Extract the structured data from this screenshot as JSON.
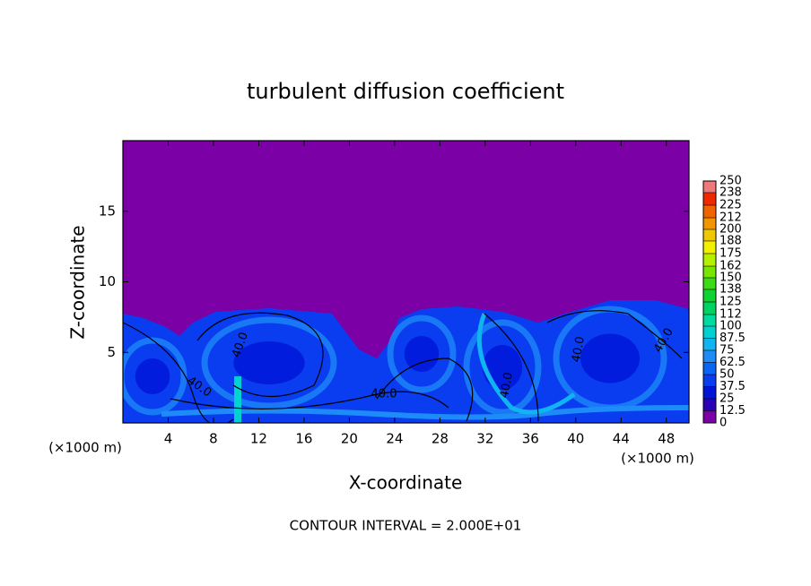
{
  "chart_data": {
    "type": "contour",
    "title": "turbulent diffusion coefficient",
    "xlabel": "X-coordinate",
    "ylabel": "Z-coordinate",
    "yunit": "(×1000 m)",
    "xunit": "(×1000 m)",
    "annotation": "CONTOUR INTERVAL = 2.000E+01",
    "xlim": [
      0,
      50
    ],
    "xticks": [
      4,
      8,
      12,
      16,
      20,
      24,
      28,
      32,
      36,
      40,
      44,
      48
    ],
    "ylim": [
      0,
      20
    ],
    "yticks": [
      5,
      10,
      15
    ],
    "clim": [
      0,
      250
    ],
    "cticks": [
      0,
      12.5,
      25,
      37.5,
      50,
      62.5,
      75,
      87.5,
      100,
      112,
      125,
      138,
      150,
      162,
      175,
      188,
      200,
      212,
      225,
      238,
      250
    ],
    "colors": [
      "#7b00a6",
      "#2a00b8",
      "#0014d8",
      "#0a3cf0",
      "#0a64f4",
      "#1e8cf8",
      "#10b4f0",
      "#00d2d2",
      "#00dca0",
      "#00d264",
      "#10d232",
      "#3cdc14",
      "#78e600",
      "#b4f000",
      "#f0f000",
      "#f0c800",
      "#f09600",
      "#f06400",
      "#f02800",
      "#f07878"
    ],
    "contour_labels": [
      "40.0",
      "40.0",
      "40.0",
      "40.0",
      "40.0",
      "40.0"
    ]
  }
}
